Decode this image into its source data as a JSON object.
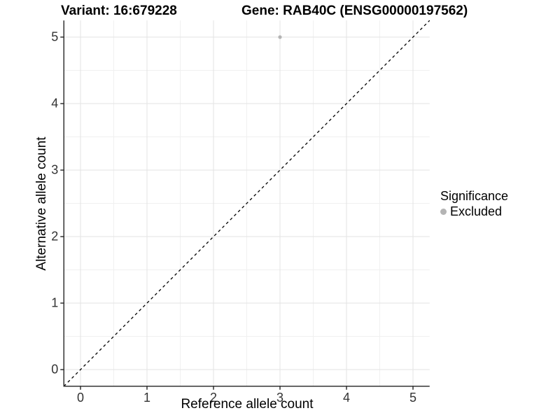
{
  "header": {
    "variant_title": "Variant: 16:679228",
    "gene_title": "Gene: RAB40C (ENSG00000197562)"
  },
  "axes": {
    "x_label": "Reference allele count",
    "y_label": "Alternative allele count"
  },
  "legend": {
    "title": "Significance",
    "items": [
      {
        "label": "Excluded",
        "color": "#b4b4b4"
      }
    ]
  },
  "colors": {
    "background": "#ffffff",
    "axis_line": "#333333",
    "major_grid": "#e3e3e3",
    "minor_grid": "#f0f0f0",
    "identity_line": "#000000",
    "point": "#b4b4b4",
    "tick_label": "#333333"
  },
  "chart_data": {
    "type": "scatter",
    "title": "Variant: 16:679228 | Gene: RAB40C (ENSG00000197562)",
    "xlabel": "Reference allele count",
    "ylabel": "Alternative allele count",
    "xlim": [
      -0.25,
      5.25
    ],
    "ylim": [
      -0.25,
      5.25
    ],
    "x_ticks": [
      0,
      1,
      2,
      3,
      4,
      5
    ],
    "y_ticks": [
      0,
      1,
      2,
      3,
      4,
      5
    ],
    "grid": "major-and-minor",
    "legend_position": "right",
    "identity_line": {
      "equation": "y = x",
      "style": "dashed",
      "color": "#000000"
    },
    "series": [
      {
        "name": "Excluded",
        "color": "#b4b4b4",
        "points": [
          {
            "x": 3,
            "y": 5
          }
        ]
      }
    ]
  }
}
